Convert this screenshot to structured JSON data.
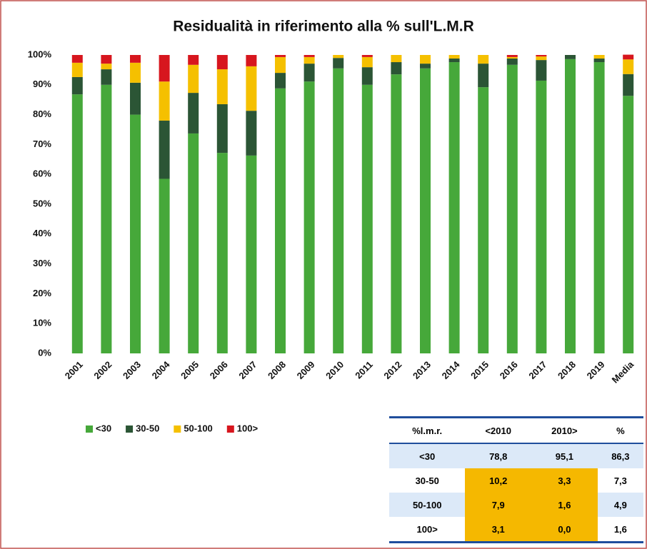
{
  "chart_data": {
    "type": "stacked_bar",
    "title": "Residualità in riferimento alla % sull'L.M.R",
    "categories": [
      "2001",
      "2002",
      "2003",
      "2004",
      "2005",
      "2006",
      "2007",
      "2008",
      "2009",
      "2010",
      "2011",
      "2012",
      "2013",
      "2014",
      "2015",
      "2016",
      "2017",
      "2018",
      "2019",
      "Media"
    ],
    "series": [
      {
        "name": "<30",
        "color": "#46a83a",
        "values": [
          86.8,
          90.0,
          80.0,
          58.5,
          73.7,
          67.2,
          66.3,
          88.8,
          91.1,
          95.5,
          90.0,
          93.5,
          95.5,
          97.6,
          89.2,
          96.7,
          91.4,
          98.6,
          97.6,
          86.3
        ]
      },
      {
        "name": "30-50",
        "color": "#2b5535",
        "values": [
          5.8,
          5.2,
          10.7,
          19.5,
          13.6,
          16.3,
          15.0,
          5.2,
          6.0,
          3.5,
          5.9,
          4.1,
          1.6,
          1.2,
          7.9,
          2.1,
          6.9,
          1.4,
          1.2,
          7.3
        ]
      },
      {
        "name": "50-100",
        "color": "#f5c000",
        "values": [
          4.8,
          1.9,
          6.7,
          13.1,
          9.4,
          11.7,
          14.9,
          5.3,
          2.2,
          1.0,
          3.4,
          2.4,
          2.9,
          1.2,
          2.9,
          0.5,
          1.2,
          0,
          1.2,
          4.9
        ]
      },
      {
        "name": "100>",
        "color": "#d7161e",
        "values": [
          2.6,
          2.9,
          2.6,
          8.9,
          3.3,
          4.8,
          3.8,
          0.7,
          0.7,
          0,
          0.7,
          0,
          0,
          0,
          0,
          0.7,
          0.5,
          0,
          0,
          1.6
        ]
      }
    ],
    "ylim": [
      0,
      100
    ],
    "yticks": [
      {
        "value": 0,
        "label": "0%"
      },
      {
        "value": 10,
        "label": "10%"
      },
      {
        "value": 20,
        "label": "20%"
      },
      {
        "value": 30,
        "label": "30%"
      },
      {
        "value": 40,
        "label": "40%"
      },
      {
        "value": 50,
        "label": "50%"
      },
      {
        "value": 60,
        "label": "60%"
      },
      {
        "value": 70,
        "label": "70%"
      },
      {
        "value": 80,
        "label": "80%"
      },
      {
        "value": 90,
        "label": "90%"
      },
      {
        "value": 100,
        "label": "100%"
      }
    ],
    "grid": false,
    "legend": "bottom-left"
  },
  "table": {
    "header": [
      "%l.m.r.",
      "<2010",
      "2010>",
      "%"
    ],
    "rows": [
      [
        "<30",
        "78,8",
        "95,1",
        "86,3"
      ],
      [
        "30-50",
        "10,2",
        "3,3",
        "7,3"
      ],
      [
        "50-100",
        "7,9",
        "1,6",
        "4,9"
      ],
      [
        "100>",
        "3,1",
        "0,0",
        "1,6"
      ]
    ]
  }
}
